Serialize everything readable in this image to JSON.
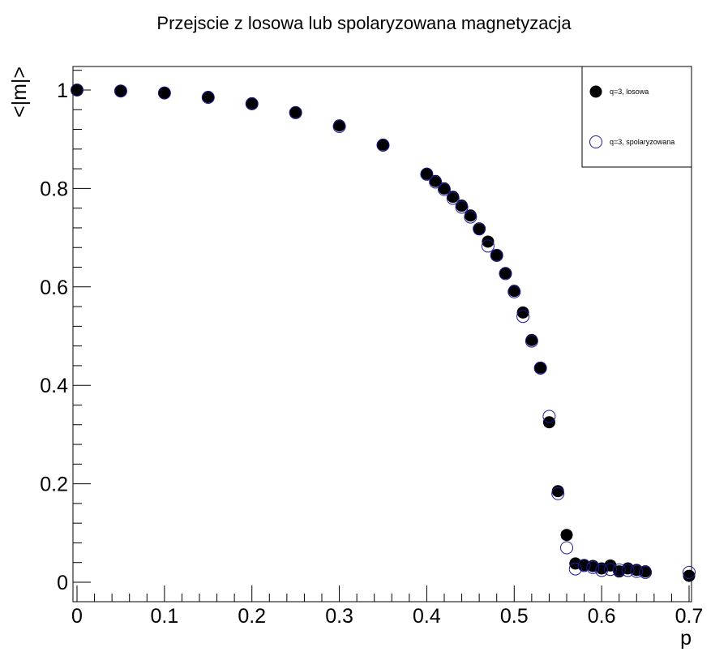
{
  "chart_data": {
    "type": "scatter",
    "title": "Przejscie z losowa lub spolaryzowana magnetyzacja",
    "xlabel": "p",
    "ylabel": "<|m|>",
    "xlim": [
      0,
      0.7
    ],
    "ylim": [
      -0.04,
      1.05
    ],
    "x_ticks": [
      "0",
      "0.1",
      "0.2",
      "0.3",
      "0.4",
      "0.5",
      "0.6",
      "0.7"
    ],
    "y_ticks": [
      "0",
      "0.2",
      "0.4",
      "0.6",
      "0.8",
      "1"
    ],
    "grid": false,
    "legend_position": "top-right",
    "series": [
      {
        "name": "q=3, losowa",
        "marker": "filled-circle",
        "color": "#000000",
        "x": [
          0,
          0.05,
          0.1,
          0.15,
          0.2,
          0.25,
          0.3,
          0.35,
          0.4,
          0.41,
          0.42,
          0.43,
          0.44,
          0.45,
          0.46,
          0.47,
          0.48,
          0.49,
          0.5,
          0.51,
          0.52,
          0.53,
          0.54,
          0.55,
          0.56,
          0.57,
          0.58,
          0.59,
          0.6,
          0.61,
          0.62,
          0.63,
          0.64,
          0.65,
          0.7
        ],
        "y": [
          1.0,
          0.998,
          0.994,
          0.986,
          0.973,
          0.955,
          0.928,
          0.889,
          0.83,
          0.815,
          0.8,
          0.783,
          0.765,
          0.745,
          0.717,
          0.692,
          0.665,
          0.628,
          0.592,
          0.548,
          0.492,
          0.436,
          0.325,
          0.185,
          0.096,
          0.038,
          0.035,
          0.033,
          0.028,
          0.034,
          0.022,
          0.028,
          0.025,
          0.022,
          0.013
        ]
      },
      {
        "name": "q=3, spolaryzowana",
        "marker": "open-circle",
        "color": "#1b1b9e",
        "x": [
          0,
          0.05,
          0.1,
          0.15,
          0.2,
          0.25,
          0.3,
          0.35,
          0.4,
          0.41,
          0.42,
          0.43,
          0.44,
          0.45,
          0.46,
          0.47,
          0.48,
          0.49,
          0.5,
          0.51,
          0.52,
          0.53,
          0.54,
          0.55,
          0.56,
          0.57,
          0.58,
          0.59,
          0.6,
          0.61,
          0.62,
          0.63,
          0.64,
          0.65,
          0.7
        ],
        "y": [
          1.0,
          0.998,
          0.994,
          0.985,
          0.972,
          0.954,
          0.926,
          0.888,
          0.829,
          0.813,
          0.798,
          0.78,
          0.762,
          0.742,
          0.718,
          0.683,
          0.664,
          0.627,
          0.59,
          0.54,
          0.49,
          0.435,
          0.337,
          0.18,
          0.07,
          0.027,
          0.034,
          0.03,
          0.024,
          0.026,
          0.025,
          0.024,
          0.022,
          0.02,
          0.02
        ]
      }
    ]
  }
}
